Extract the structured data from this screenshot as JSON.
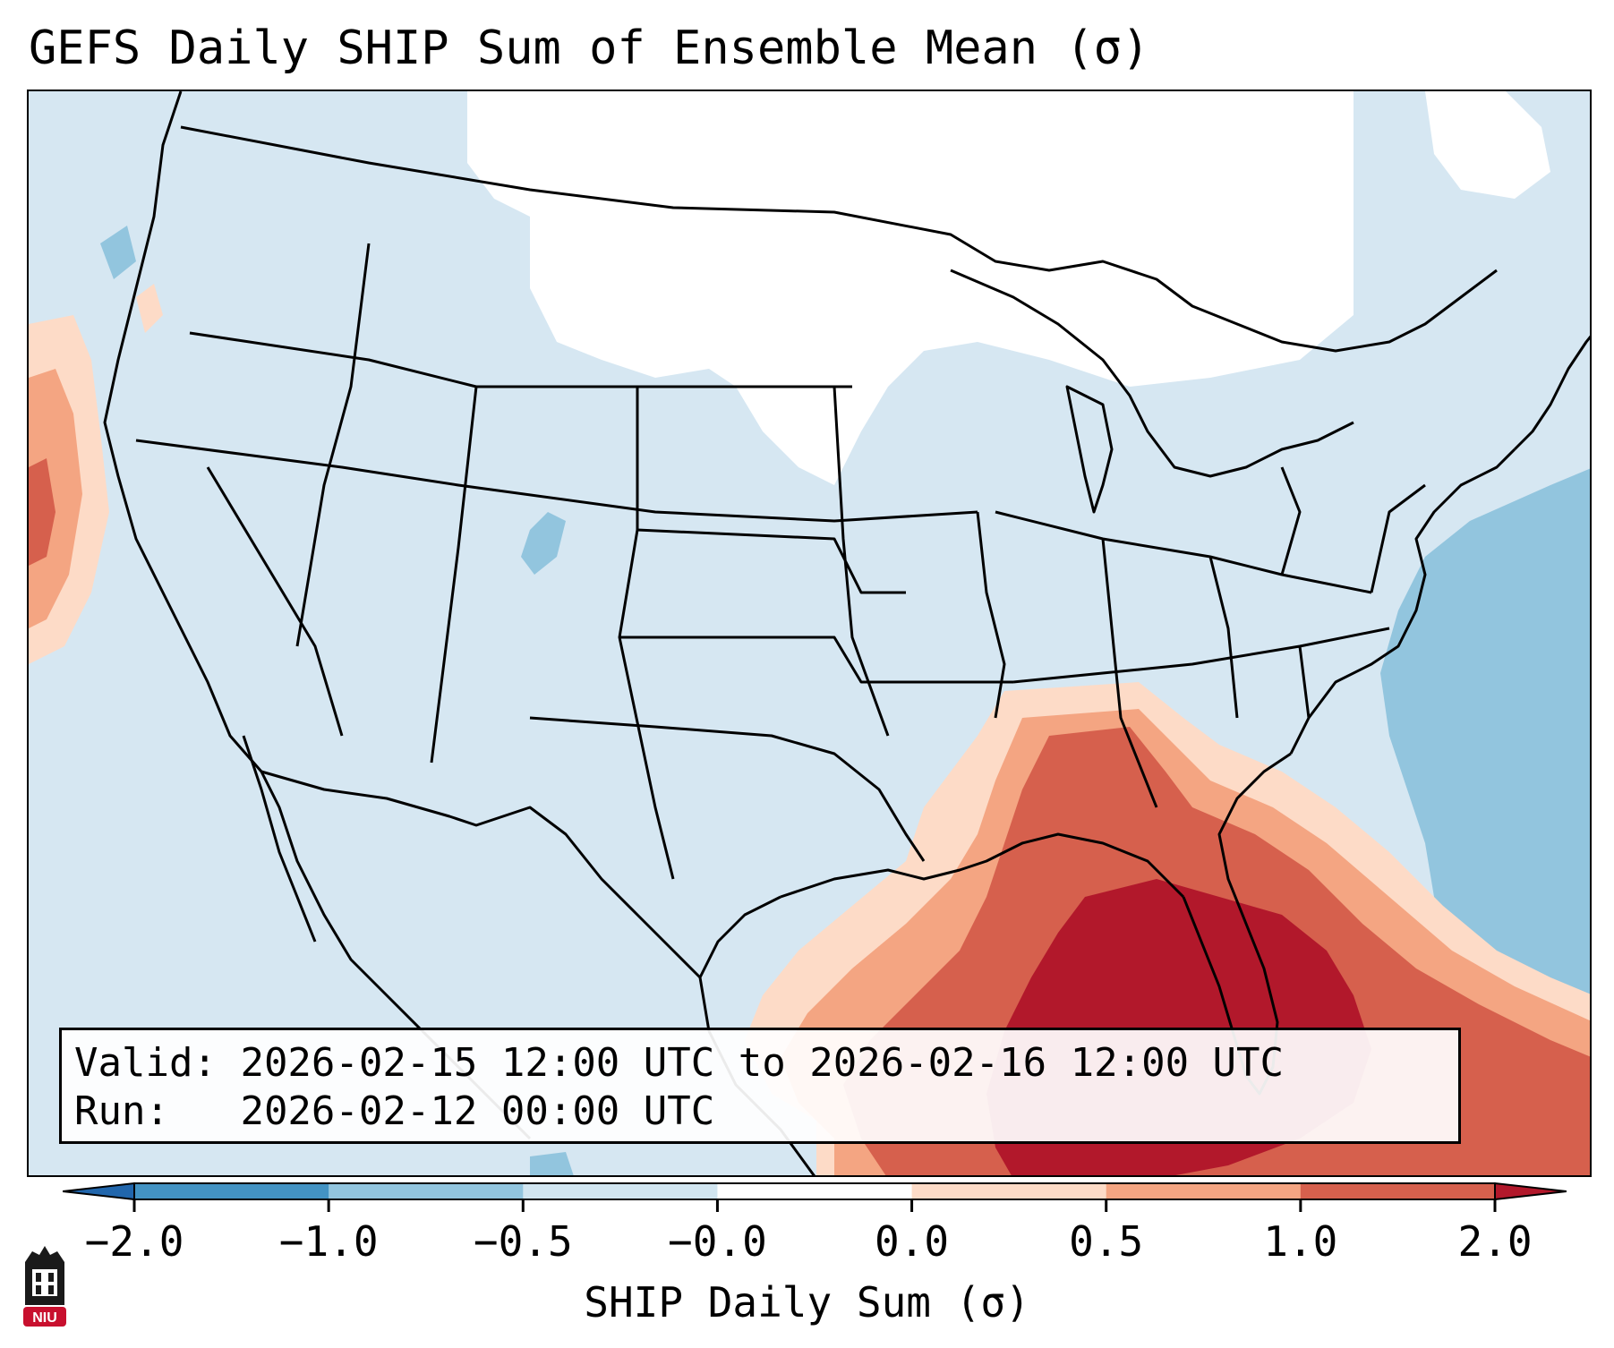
{
  "title": "GEFS Daily SHIP Sum of Ensemble Mean (σ)",
  "info": {
    "valid_label": "Valid:",
    "valid_value": "2026-02-15 12:00 UTC to 2026-02-16 12:00 UTC",
    "run_label": "Run:",
    "run_value": "2026-02-12 00:00 UTC"
  },
  "colorbar": {
    "label": "SHIP Daily Sum (σ)",
    "ticks": [
      "−2.0",
      "−1.0",
      "−0.5",
      "−0.0",
      "0.0",
      "0.5",
      "1.0",
      "2.0"
    ],
    "bins": [
      {
        "range": "< -2.0",
        "color": "#2166ac"
      },
      {
        "range": "-2.0 to -1.0",
        "color": "#4393c3"
      },
      {
        "range": "-1.0 to -0.5",
        "color": "#92c5de"
      },
      {
        "range": "-0.5 to -0.0",
        "color": "#d1e5f0"
      },
      {
        "range": "-0.0 to 0.0",
        "color": "#ffffff"
      },
      {
        "range": "0.0 to 0.5",
        "color": "#fddbc7"
      },
      {
        "range": "0.5 to 1.0",
        "color": "#f4a582"
      },
      {
        "range": "1.0 to 2.0",
        "color": "#d6604d"
      },
      {
        "range": "> 2.0",
        "color": "#b2182b"
      }
    ]
  },
  "map": {
    "region": "CONUS",
    "background_color": "#d6e7f2",
    "max_anomaly_region": "Gulf of Mexico / Florida"
  },
  "logo": {
    "text": "NIU",
    "color": "#c8102e"
  }
}
